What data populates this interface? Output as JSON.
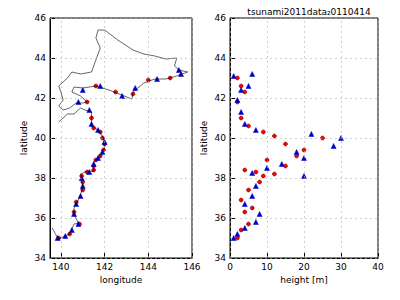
{
  "chart_data": [
    {
      "type": "scatter",
      "x_label": "longitude",
      "y_label": "latitude",
      "xlim": [
        139.5,
        146
      ],
      "xticks": [
        140,
        142,
        144,
        146
      ],
      "ylim": [
        34,
        46
      ],
      "yticks": [
        34,
        36,
        38,
        40,
        42,
        44,
        46
      ],
      "grid": true,
      "series": [
        {
          "type": "line",
          "color": "#000000",
          "x": [
            139.6,
            139.8,
            139.9,
            140.2,
            140.4,
            140.6,
            140.8,
            140.6,
            140.6,
            140.8,
            141.0,
            140.95,
            140.9,
            141.1,
            141.5,
            141.5,
            141.7,
            142.0,
            141.95,
            141.7,
            141.4,
            141.4,
            141.1,
            140.9,
            140.6,
            140.3,
            139.9
          ],
          "values": [
            35.5,
            35.1,
            34.95,
            35.1,
            35.2,
            35.7,
            35.75,
            36.2,
            36.5,
            36.9,
            37.5,
            38.0,
            38.2,
            38.3,
            38.35,
            38.8,
            39.0,
            39.5,
            40.0,
            40.4,
            40.6,
            41.3,
            41.4,
            41.5,
            41.2,
            41.2,
            40.8
          ]
        },
        {
          "type": "line",
          "color": "#000000",
          "x": [
            139.9,
            140.1,
            140.4,
            140.7,
            141.0,
            141.2,
            140.9,
            140.5,
            140.6,
            141.0,
            141.6,
            142.2,
            142.9,
            143.25,
            143.3,
            143.8,
            144.3,
            144.8,
            145.3,
            145.8,
            145.4,
            145.2,
            145.3,
            144.8,
            144.3,
            143.8,
            143.3,
            142.6,
            142.0,
            141.7,
            141.6,
            141.8,
            141.6,
            141.4,
            140.9,
            140.5,
            140.3,
            139.9,
            140.0,
            140.1,
            139.9
          ],
          "values": [
            41.6,
            41.4,
            41.5,
            41.75,
            41.75,
            41.8,
            42.1,
            42.3,
            42.55,
            42.5,
            42.6,
            42.4,
            42.1,
            41.95,
            42.3,
            42.75,
            42.95,
            42.95,
            43.1,
            43.3,
            43.4,
            43.6,
            44.0,
            43.95,
            44.1,
            44.2,
            44.4,
            44.9,
            45.4,
            45.4,
            45.0,
            44.5,
            43.9,
            43.3,
            43.2,
            43.3,
            43.0,
            42.6,
            42.3,
            41.9,
            41.6
          ]
        },
        {
          "type": "scatter",
          "marker": "circle",
          "color": "#ff0000",
          "x": [
            140.85,
            140.6,
            140.7,
            141.0,
            141.0,
            140.95,
            141.2,
            141.5,
            141.5,
            141.6,
            141.8,
            141.95,
            142.0,
            141.9,
            141.8,
            141.5,
            141.4,
            141.2,
            141.6,
            142.5,
            143.3,
            144.0,
            145.0,
            140.4,
            139.9
          ],
          "values": [
            35.7,
            36.3,
            36.8,
            37.4,
            37.8,
            38.1,
            38.3,
            38.4,
            38.6,
            38.9,
            39.1,
            39.4,
            39.7,
            40.0,
            40.3,
            40.5,
            41.0,
            41.8,
            42.6,
            42.3,
            42.2,
            42.9,
            43.0,
            35.2,
            35.0
          ]
        },
        {
          "type": "scatter",
          "marker": "triangle",
          "color": "#0000cc",
          "x": [
            139.85,
            140.2,
            140.5,
            140.8,
            140.6,
            140.7,
            140.9,
            141.0,
            140.95,
            141.3,
            141.5,
            141.7,
            141.9,
            142.0,
            141.7,
            141.4,
            141.3,
            140.8,
            141.0,
            141.8,
            142.8,
            143.4,
            144.4,
            145.5,
            145.4
          ],
          "values": [
            35.0,
            35.1,
            35.4,
            35.7,
            36.2,
            36.7,
            37.1,
            37.6,
            38.0,
            38.3,
            38.7,
            39.0,
            39.3,
            39.8,
            40.4,
            40.7,
            41.4,
            41.8,
            42.4,
            42.6,
            42.1,
            42.5,
            42.95,
            43.2,
            43.4
          ]
        }
      ]
    },
    {
      "type": "scatter",
      "title": "tsunami2011data₂0110414",
      "x_label": "height [m]",
      "y_label": "latitude",
      "xlim": [
        0,
        40
      ],
      "xticks": [
        0,
        10,
        20,
        30,
        40
      ],
      "ylim": [
        34,
        46
      ],
      "yticks": [
        34,
        36,
        38,
        40,
        42,
        44,
        46
      ],
      "grid": true,
      "series": [
        {
          "type": "scatter",
          "marker": "circle",
          "color": "#ff0000",
          "x": [
            2,
            3,
            5,
            4,
            6,
            3,
            5,
            8,
            9,
            12,
            7,
            4,
            15,
            10,
            18,
            20,
            15,
            25,
            12,
            9,
            5,
            3,
            2,
            4,
            3,
            2
          ],
          "values": [
            35.0,
            35.4,
            35.7,
            36.3,
            36.5,
            36.9,
            37.4,
            37.8,
            38.1,
            38.2,
            38.3,
            38.4,
            38.6,
            38.9,
            39.1,
            39.4,
            39.7,
            40.0,
            40.1,
            40.3,
            40.6,
            41.0,
            41.8,
            42.3,
            42.6,
            43.0
          ]
        },
        {
          "type": "scatter",
          "marker": "triangle",
          "color": "#0000cc",
          "x": [
            1,
            2,
            4,
            7,
            8,
            4,
            6,
            7,
            20,
            6,
            10,
            14,
            20,
            18,
            28,
            30,
            22,
            7,
            4,
            3,
            2,
            3,
            5,
            1,
            6
          ],
          "values": [
            35.0,
            35.2,
            35.5,
            35.8,
            36.2,
            36.7,
            37.1,
            37.6,
            38.1,
            38.25,
            38.5,
            38.7,
            39.0,
            39.3,
            39.6,
            40.0,
            40.2,
            40.4,
            40.7,
            41.3,
            41.9,
            42.4,
            42.6,
            43.1,
            43.2
          ]
        }
      ]
    }
  ]
}
